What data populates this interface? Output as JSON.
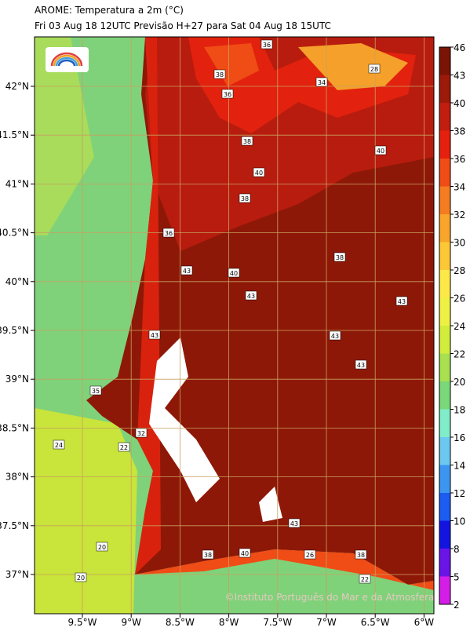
{
  "header": {
    "title": "AROME: Temperatura a 2m (°C)",
    "subtitle": "Fri 03 Aug 18 12UTC Previsão H+27 para Sat 04 Aug 18 15UTC"
  },
  "axes": {
    "lon_labels": [
      "9.5°W",
      "9°W",
      "8.5°W",
      "8°W",
      "7.5°W",
      "7°W",
      "6.5°W",
      "6°W"
    ],
    "lat_labels": [
      "42°N",
      "41.5°N",
      "41°N",
      "40.5°N",
      "40°N",
      "39.5°N",
      "39°N",
      "38.5°N",
      "38°N",
      "37.5°N",
      "37°N"
    ]
  },
  "colorbar": {
    "ticks": [
      46,
      43,
      40,
      38,
      36,
      34,
      32,
      30,
      28,
      26,
      24,
      22,
      20,
      18,
      16,
      14,
      12,
      10,
      8,
      5,
      2
    ],
    "colors": [
      "#7a1406",
      "#9c1a0a",
      "#c21e10",
      "#e6200e",
      "#f04c16",
      "#f57c20",
      "#f9a42a",
      "#fcc838",
      "#fde84a",
      "#eef044",
      "#d2ec3c",
      "#a8e050",
      "#7ad87a",
      "#80ecc8",
      "#6cc8f0",
      "#3c96f0",
      "#1c5cf0",
      "#1414e0",
      "#6a14e8",
      "#d41ee8"
    ]
  },
  "contour_labels": [
    "36",
    "38",
    "36",
    "34",
    "28",
    "38",
    "40",
    "40",
    "38",
    "38",
    "43",
    "40",
    "43",
    "43",
    "43",
    "43",
    "43",
    "43",
    "40",
    "38",
    "36",
    "26",
    "38",
    "22",
    "20",
    "24",
    "22",
    "20",
    "32",
    "35"
  ],
  "watermark": "©Instituto Português do Mar e da Atmosfera"
}
